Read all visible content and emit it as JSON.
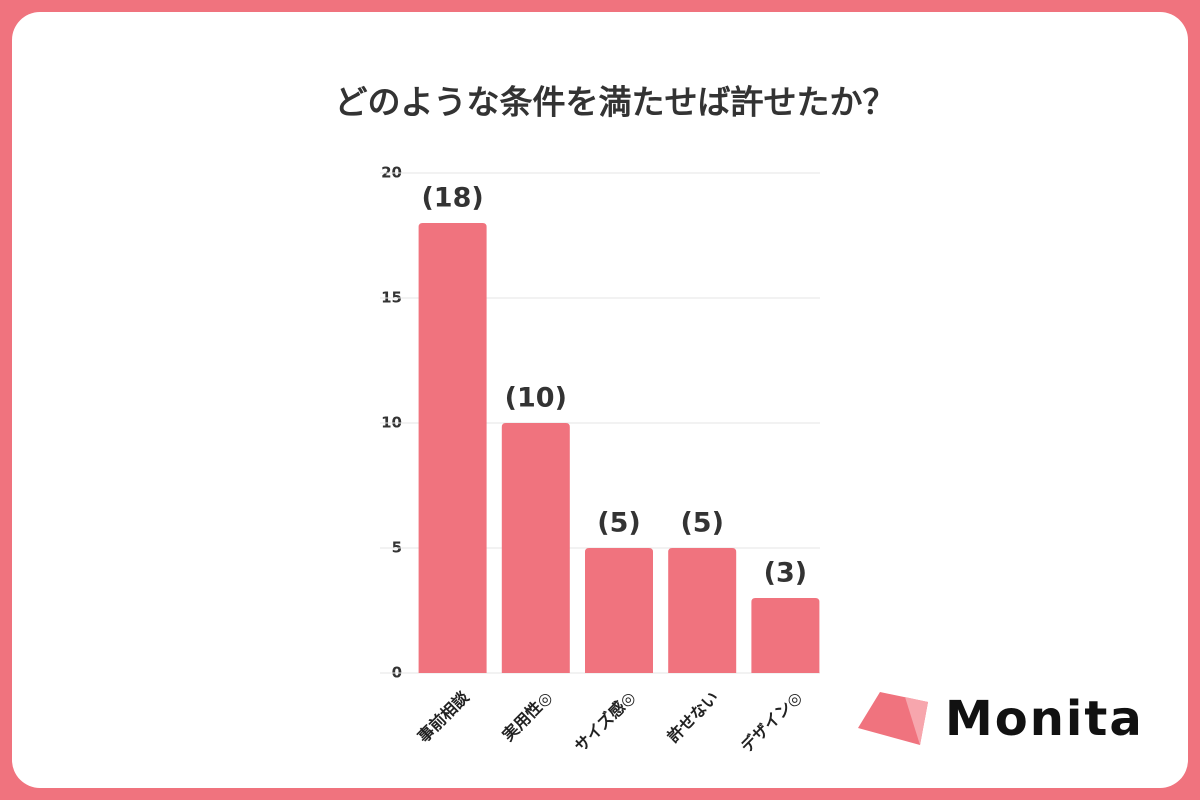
{
  "chart_data": {
    "type": "bar",
    "title": "どのような条件を満たせば許せたか？",
    "categories": [
      "事前相談",
      "実用性◎",
      "サイズ感◎",
      "許せない",
      "デザイン◎"
    ],
    "values": [
      18,
      10,
      5,
      5,
      3
    ],
    "value_labels": [
      "(18)",
      "(10)",
      "(5)",
      "(5)",
      "(3)"
    ],
    "color": "#f0737e",
    "ylim": [
      0,
      20
    ],
    "yticks": [
      0,
      5,
      10,
      15,
      20
    ],
    "grid": true
  },
  "brand": "Monita"
}
